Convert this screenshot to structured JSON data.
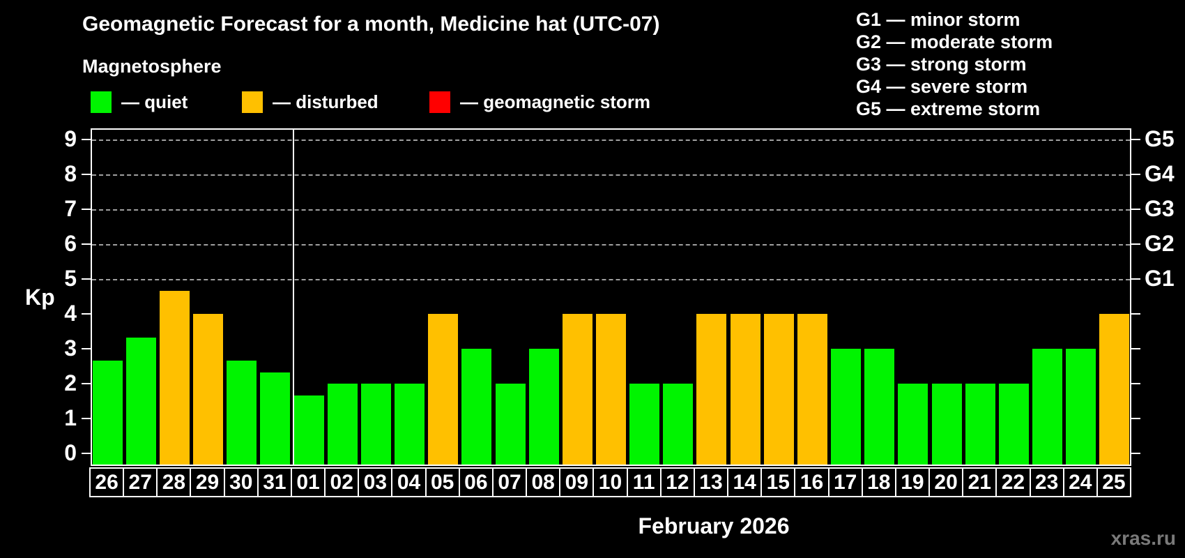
{
  "title": "Geomagnetic Forecast for a month, Medicine hat (UTC-07)",
  "subtitle": "Magnetosphere",
  "legend": {
    "items": [
      {
        "status": "quiet",
        "label": "— quiet"
      },
      {
        "status": "disturbed",
        "label": "— disturbed"
      },
      {
        "status": "storm",
        "label": "— geomagnetic storm"
      }
    ]
  },
  "g_legend": [
    "G1 — minor storm",
    "G2 — moderate storm",
    "G3 — strong storm",
    "G4 — severe storm",
    "G5 — extreme storm"
  ],
  "xlabel": "February 2026",
  "watermark": "xras.ru",
  "chart_data": {
    "type": "bar",
    "title": "Geomagnetic Forecast for a month, Medicine hat (UTC-07)",
    "ylabel": "Kp",
    "xlabel": "February 2026",
    "ylim": [
      0,
      9
    ],
    "yticks": [
      0,
      1,
      2,
      3,
      4,
      5,
      6,
      7,
      8,
      9
    ],
    "grid_kp_levels": [
      5,
      6,
      7,
      8,
      9
    ],
    "right_axis_labels": [
      {
        "label": "G1",
        "kp": 5
      },
      {
        "label": "G2",
        "kp": 6
      },
      {
        "label": "G3",
        "kp": 7
      },
      {
        "label": "G4",
        "kp": 8
      },
      {
        "label": "G5",
        "kp": 9
      }
    ],
    "legend_position": "top",
    "grid": true,
    "month_separator_after": "31",
    "categories": [
      "26",
      "27",
      "28",
      "29",
      "30",
      "31",
      "01",
      "02",
      "03",
      "04",
      "05",
      "06",
      "07",
      "08",
      "09",
      "10",
      "11",
      "12",
      "13",
      "14",
      "15",
      "16",
      "17",
      "18",
      "19",
      "20",
      "21",
      "22",
      "23",
      "24",
      "25"
    ],
    "values": [
      2.67,
      3.33,
      4.67,
      4,
      2.67,
      2.33,
      1.67,
      2,
      2,
      2,
      4,
      3,
      2,
      3,
      4,
      4,
      2,
      2,
      4,
      4,
      4,
      4,
      3,
      3,
      2,
      2,
      2,
      2,
      3,
      3,
      4
    ],
    "statuses": [
      "quiet",
      "quiet",
      "disturbed",
      "disturbed",
      "quiet",
      "quiet",
      "quiet",
      "quiet",
      "quiet",
      "quiet",
      "disturbed",
      "quiet",
      "quiet",
      "quiet",
      "disturbed",
      "disturbed",
      "quiet",
      "quiet",
      "disturbed",
      "disturbed",
      "disturbed",
      "disturbed",
      "quiet",
      "quiet",
      "quiet",
      "quiet",
      "quiet",
      "quiet",
      "quiet",
      "quiet",
      "disturbed"
    ],
    "colors": {
      "quiet": "#00f400",
      "disturbed": "#ffc000",
      "storm": "#ff0000",
      "background": "#000000",
      "text": "#ffffff",
      "grid": "#a0a0a0",
      "watermark": "#7a7a7a"
    }
  }
}
